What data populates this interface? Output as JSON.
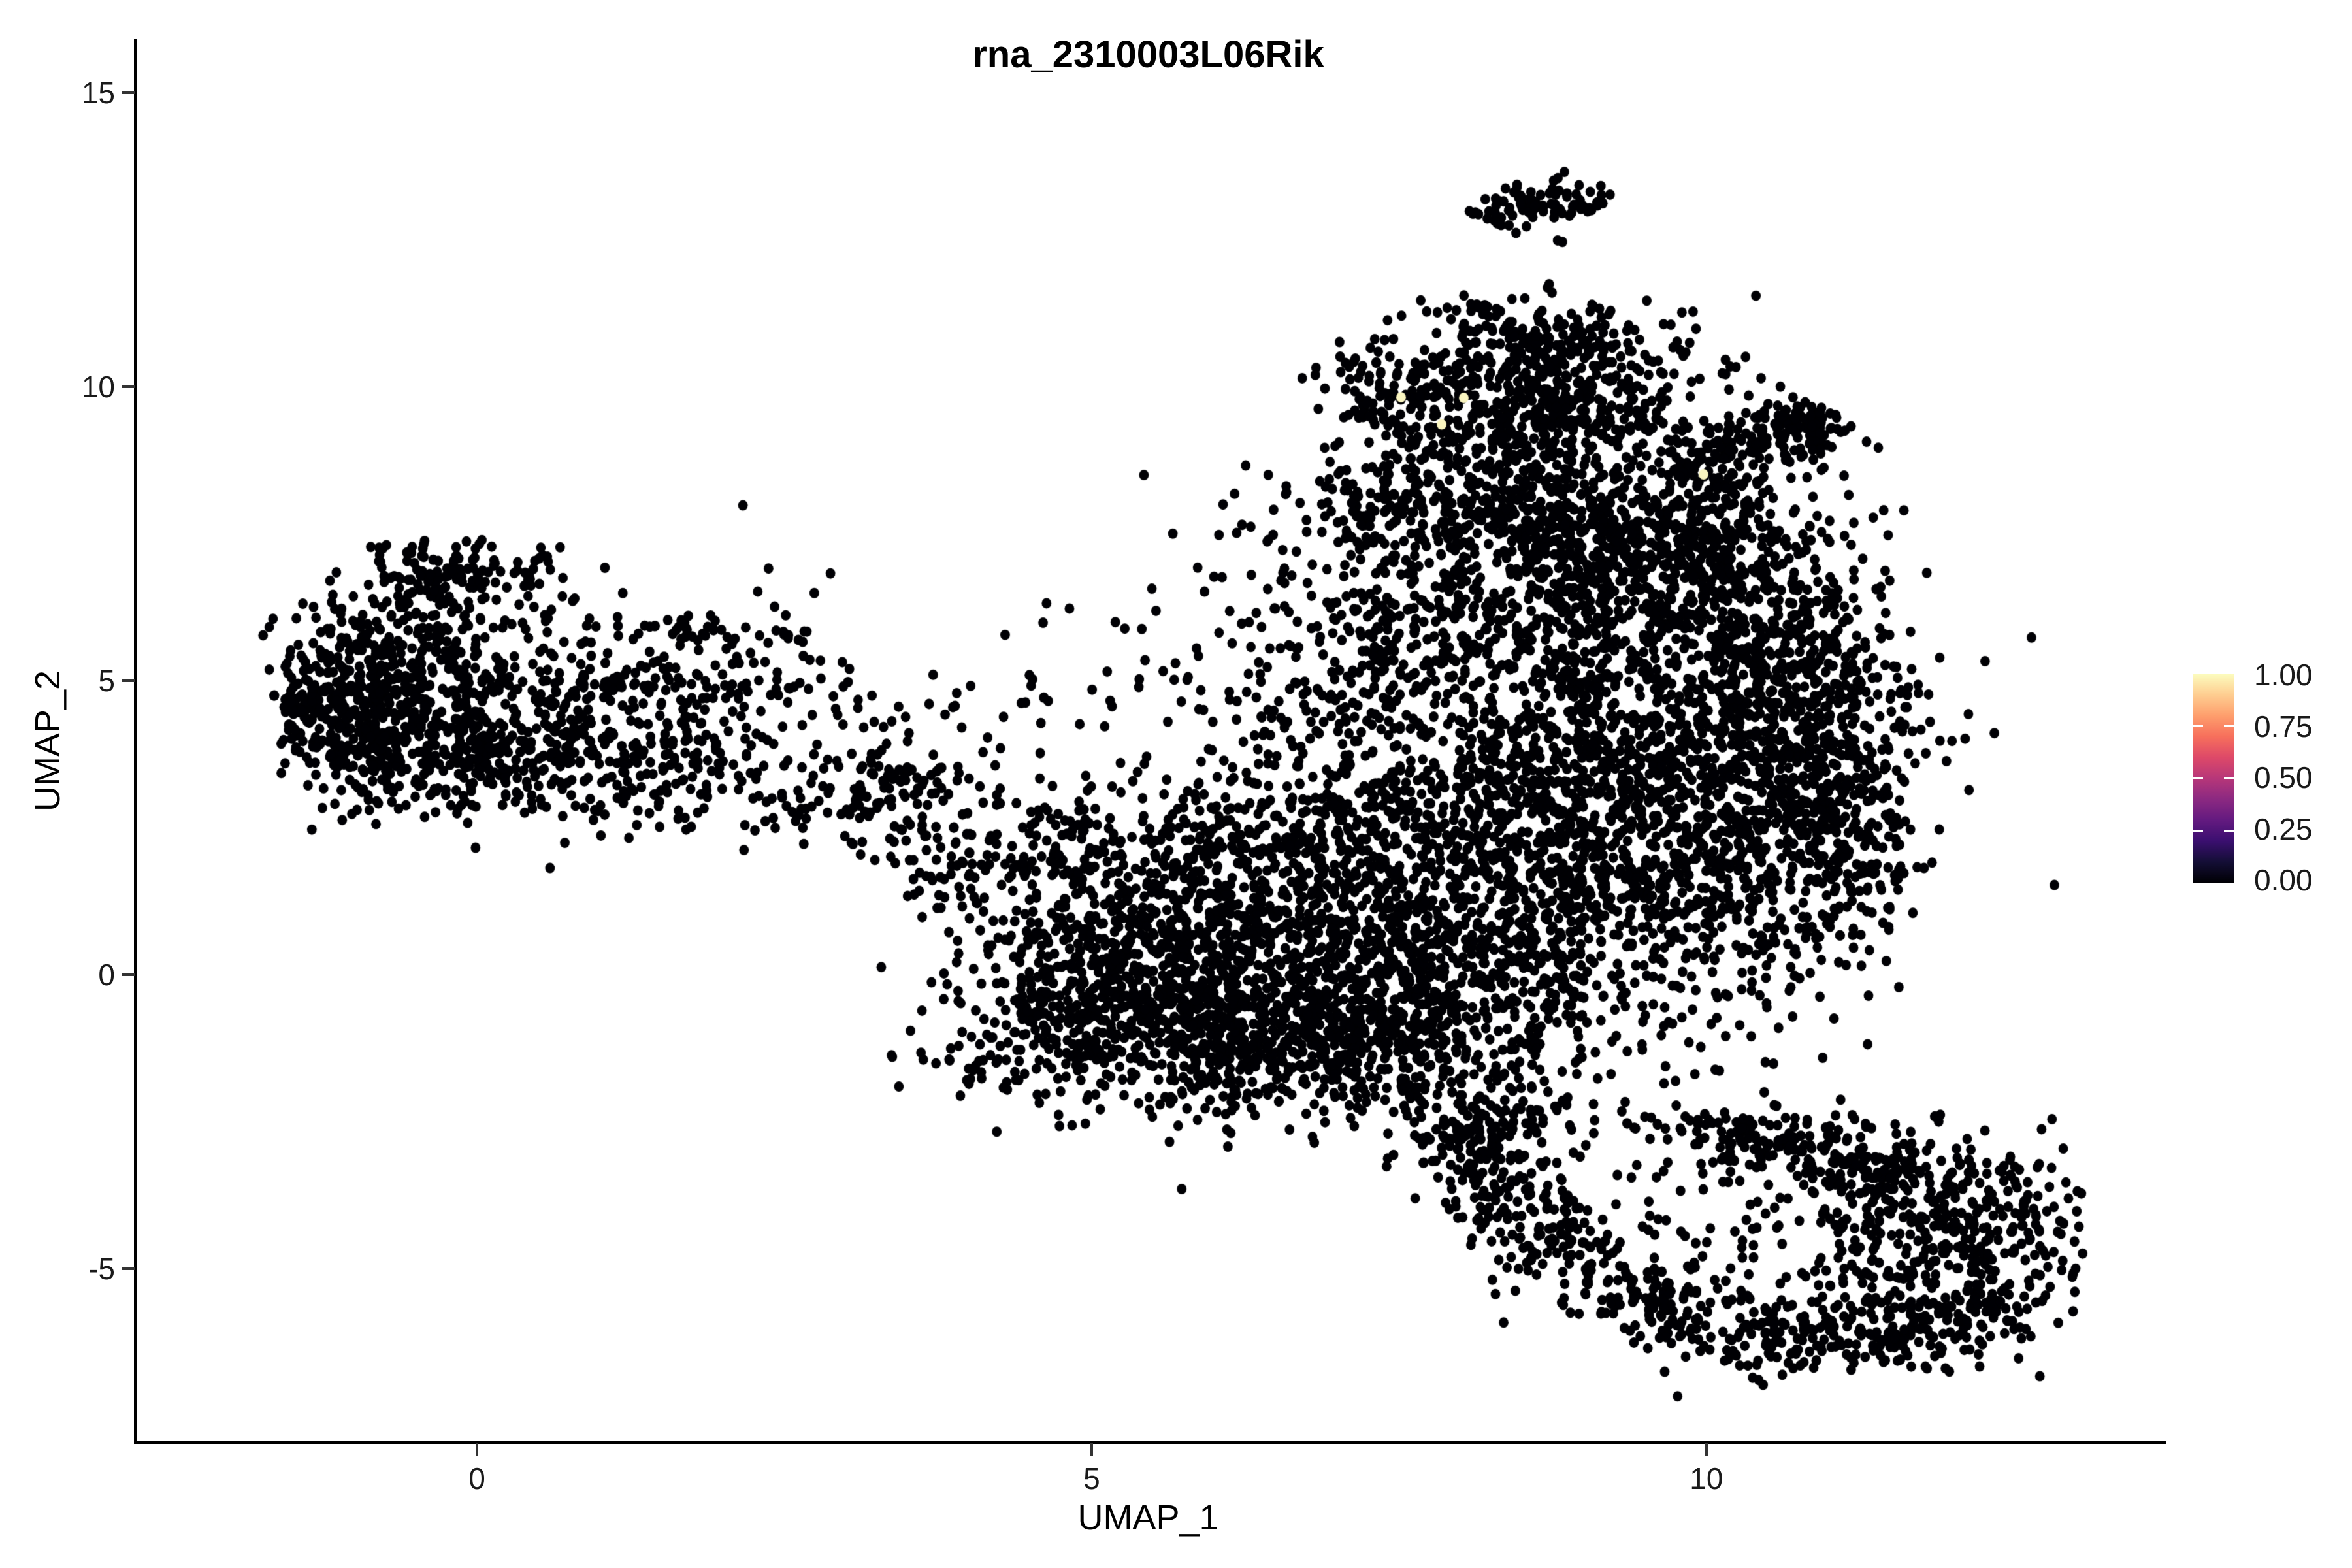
{
  "title": "rna_2310003L06Rik",
  "axes": {
    "x": {
      "label": "UMAP_1",
      "tick_labels": [
        "0",
        "5",
        "10"
      ],
      "tick_values": [
        0,
        5,
        10
      ]
    },
    "y": {
      "label": "UMAP_2",
      "tick_labels": [
        "15",
        "10",
        "5",
        "0",
        "-5"
      ],
      "tick_values": [
        15,
        10,
        5,
        0,
        -5
      ]
    }
  },
  "legend": {
    "labels": [
      "1.00",
      "0.75",
      "0.50",
      "0.25",
      "0.00"
    ],
    "colormap": "magma",
    "gradient_bottom_to_top": [
      "#000004",
      "#140E36",
      "#3B0F70",
      "#641A80",
      "#8C2981",
      "#B73779",
      "#DE4968",
      "#F7705C",
      "#FE9F6D",
      "#FECE91",
      "#FCFDBF"
    ]
  },
  "chart_data": {
    "type": "scatter",
    "title": "rna_2310003L06Rik",
    "xlabel": "UMAP_1",
    "ylabel": "UMAP_2",
    "x_domain": [
      -2.79,
      13.71
    ],
    "y_domain": [
      -7.92,
      15.91
    ],
    "x_ticks": [
      0,
      5,
      10
    ],
    "y_ticks": [
      -5,
      0,
      5,
      10,
      15
    ],
    "grid": false,
    "legend_position": "right",
    "point_color": "#000004",
    "highlight_color": "#FAF5C0",
    "point_radius_px": [
      7.4,
      8.0
    ],
    "seed": 1337,
    "highlighted_points": [
      {
        "x": 7.49,
        "y": 9.82,
        "value": 1.0
      },
      {
        "x": 8.0,
        "y": 9.81,
        "value": 1.0
      },
      {
        "x": 7.82,
        "y": 9.36,
        "value": 1.0
      },
      {
        "x": 9.95,
        "y": 8.51,
        "value": 1.0
      }
    ],
    "clusters": [
      {
        "t": "g",
        "cx": -1.05,
        "cy": 4.35,
        "sx": 0.38,
        "sy": 0.6,
        "n": 330,
        "umin": -1.72
      },
      {
        "t": "g",
        "cx": -0.7,
        "cy": 5.2,
        "sx": 0.45,
        "sy": 0.65,
        "n": 260
      },
      {
        "t": "g",
        "cx": -0.15,
        "cy": 6.75,
        "sx": 0.42,
        "sy": 0.38,
        "n": 150,
        "vmax": 7.45
      },
      {
        "t": "g",
        "cx": -0.3,
        "cy": 3.6,
        "sx": 0.5,
        "sy": 0.5,
        "n": 180
      },
      {
        "t": "g",
        "cx": 0.6,
        "cy": 4.3,
        "sx": 0.7,
        "sy": 0.75,
        "n": 240
      },
      {
        "t": "g",
        "cx": 1.4,
        "cy": 3.6,
        "sx": 0.7,
        "sy": 0.55,
        "n": 170
      },
      {
        "t": "g",
        "cx": 1.9,
        "cy": 4.9,
        "sx": 0.6,
        "sy": 0.6,
        "n": 90
      },
      {
        "t": "g",
        "cx": 1.75,
        "cy": 5.85,
        "sx": 0.18,
        "sy": 0.14,
        "n": 22
      },
      {
        "t": "b",
        "x1": 2.45,
        "y1": 3.1,
        "x2": 4.35,
        "y2": 1.55,
        "w": 0.28,
        "n": 110
      },
      {
        "t": "g",
        "cx": 3.45,
        "cy": 3.35,
        "sx": 0.25,
        "sy": 0.3,
        "n": 60
      },
      {
        "t": "g",
        "cx": 0.9,
        "cy": 5.4,
        "sx": 1.0,
        "sy": 0.8,
        "n": 60
      },
      {
        "t": "g",
        "cx": 3.2,
        "cy": 4.3,
        "sx": 0.6,
        "sy": 0.6,
        "n": 25
      },
      {
        "t": "g",
        "cx": 2.4,
        "cy": 5.8,
        "sx": 0.25,
        "sy": 0.2,
        "n": 12
      },
      {
        "t": "g",
        "cx": 4.4,
        "cy": 2.4,
        "sx": 0.4,
        "sy": 0.5,
        "n": 40
      },
      {
        "t": "g",
        "cx": 5.55,
        "cy": -0.95,
        "sx": 0.85,
        "sy": 0.7,
        "n": 600
      },
      {
        "t": "g",
        "cx": 7.2,
        "cy": -0.9,
        "sx": 0.95,
        "sy": 0.75,
        "n": 700
      },
      {
        "t": "g",
        "cx": 6.3,
        "cy": 0.6,
        "sx": 1.1,
        "sy": 0.6,
        "n": 420
      },
      {
        "t": "g",
        "cx": 5.35,
        "cy": 1.9,
        "sx": 0.75,
        "sy": 0.75,
        "n": 260
      },
      {
        "t": "g",
        "cx": 6.9,
        "cy": 2.2,
        "sx": 0.8,
        "sy": 0.8,
        "n": 330
      },
      {
        "t": "g",
        "cx": 8.3,
        "cy": 1.3,
        "sx": 0.9,
        "sy": 1.1,
        "n": 600
      },
      {
        "t": "g",
        "cx": 9.8,
        "cy": 1.8,
        "sx": 0.85,
        "sy": 1.3,
        "n": 700
      },
      {
        "t": "g",
        "cx": 10.2,
        "cy": 4.3,
        "sx": 0.75,
        "sy": 1.1,
        "n": 620
      },
      {
        "t": "g",
        "cx": 11.1,
        "cy": 2.6,
        "sx": 0.4,
        "sy": 1.1,
        "n": 280,
        "umax": 11.6
      },
      {
        "t": "g",
        "cx": 8.6,
        "cy": 3.6,
        "sx": 0.9,
        "sy": 0.9,
        "n": 450
      },
      {
        "t": "g",
        "cx": 8.4,
        "cy": 6.3,
        "sx": 1.0,
        "sy": 0.9,
        "n": 550
      },
      {
        "t": "g",
        "cx": 9.9,
        "cy": 6.5,
        "sx": 0.6,
        "sy": 0.8,
        "n": 280
      },
      {
        "t": "g",
        "cx": 7.9,
        "cy": 7.9,
        "sx": 0.8,
        "sy": 0.45,
        "n": 280
      },
      {
        "t": "g",
        "cx": 7.15,
        "cy": 5.0,
        "sx": 0.45,
        "sy": 0.7,
        "n": 130
      },
      {
        "t": "g",
        "cx": 5.6,
        "cy": 4.7,
        "sx": 0.9,
        "sy": 0.85,
        "n": 55
      },
      {
        "t": "g",
        "cx": 4.9,
        "cy": 0.1,
        "sx": 0.45,
        "sy": 0.8,
        "n": 180,
        "umin": 4.25
      },
      {
        "t": "g",
        "cx": 8.1,
        "cy": -2.4,
        "sx": 0.5,
        "sy": 0.35,
        "n": 90
      },
      {
        "t": "g",
        "cx": 9.1,
        "cy": 7.6,
        "sx": 0.6,
        "sy": 0.6,
        "n": 220
      },
      {
        "t": "g",
        "cx": 10.0,
        "cy": 7.5,
        "sx": 0.5,
        "sy": 0.5,
        "n": 160
      },
      {
        "t": "g",
        "cx": 10.9,
        "cy": 5.2,
        "sx": 0.35,
        "sy": 0.8,
        "n": 120
      },
      {
        "t": "g",
        "cx": 8.7,
        "cy": 10.5,
        "sx": 0.62,
        "sy": 0.58,
        "n": 370,
        "vmax": 11.75
      },
      {
        "t": "g",
        "cx": 7.45,
        "cy": 9.9,
        "sx": 0.33,
        "sy": 0.45,
        "n": 110
      },
      {
        "t": "g",
        "cx": 8.9,
        "cy": 9.5,
        "sx": 0.5,
        "sy": 0.45,
        "n": 150
      },
      {
        "t": "b",
        "x1": 9.75,
        "y1": 8.45,
        "x2": 11.0,
        "y2": 9.55,
        "w": 0.27,
        "n": 230
      },
      {
        "t": "b",
        "x1": 8.2,
        "y1": 12.82,
        "x2": 8.62,
        "y2": 13.28,
        "w": 0.17,
        "n": 45
      },
      {
        "t": "b",
        "x1": 8.62,
        "y1": 13.28,
        "x2": 9.1,
        "y2": 13.05,
        "w": 0.17,
        "n": 45
      },
      {
        "t": "g",
        "cx": 8.82,
        "cy": 12.5,
        "sx": 0.05,
        "sy": 0.05,
        "n": 2
      },
      {
        "t": "g",
        "cx": 8.35,
        "cy": 9.0,
        "sx": 0.55,
        "sy": 0.45,
        "n": 170
      },
      {
        "t": "b",
        "x1": 7.95,
        "y1": -2.55,
        "x2": 8.55,
        "y2": -4.2,
        "w": 0.3,
        "n": 140
      },
      {
        "t": "b",
        "x1": 8.55,
        "y1": -4.2,
        "x2": 9.45,
        "y2": -5.65,
        "w": 0.3,
        "n": 140
      },
      {
        "t": "b",
        "x1": 9.45,
        "y1": -5.65,
        "x2": 11.0,
        "y2": -6.35,
        "w": 0.35,
        "n": 170
      },
      {
        "t": "b",
        "x1": 11.0,
        "y1": -6.35,
        "x2": 12.35,
        "y2": -5.55,
        "w": 0.35,
        "n": 160
      },
      {
        "t": "g",
        "cx": 11.9,
        "cy": -4.4,
        "sx": 0.7,
        "sy": 0.85,
        "n": 480,
        "umax": 13.05
      },
      {
        "t": "b",
        "x1": 10.1,
        "y1": -2.7,
        "x2": 11.6,
        "y2": -3.4,
        "w": 0.3,
        "n": 200
      },
      {
        "t": "g",
        "cx": 9.7,
        "cy": -4.1,
        "sx": 0.5,
        "sy": 0.5,
        "n": 28
      },
      {
        "t": "g",
        "cx": 8.1,
        "cy": -3.3,
        "sx": 0.3,
        "sy": 0.5,
        "n": 30
      },
      {
        "t": "g",
        "cx": 9.6,
        "cy": -2.55,
        "sx": 0.4,
        "sy": 0.25,
        "n": 40
      }
    ]
  }
}
